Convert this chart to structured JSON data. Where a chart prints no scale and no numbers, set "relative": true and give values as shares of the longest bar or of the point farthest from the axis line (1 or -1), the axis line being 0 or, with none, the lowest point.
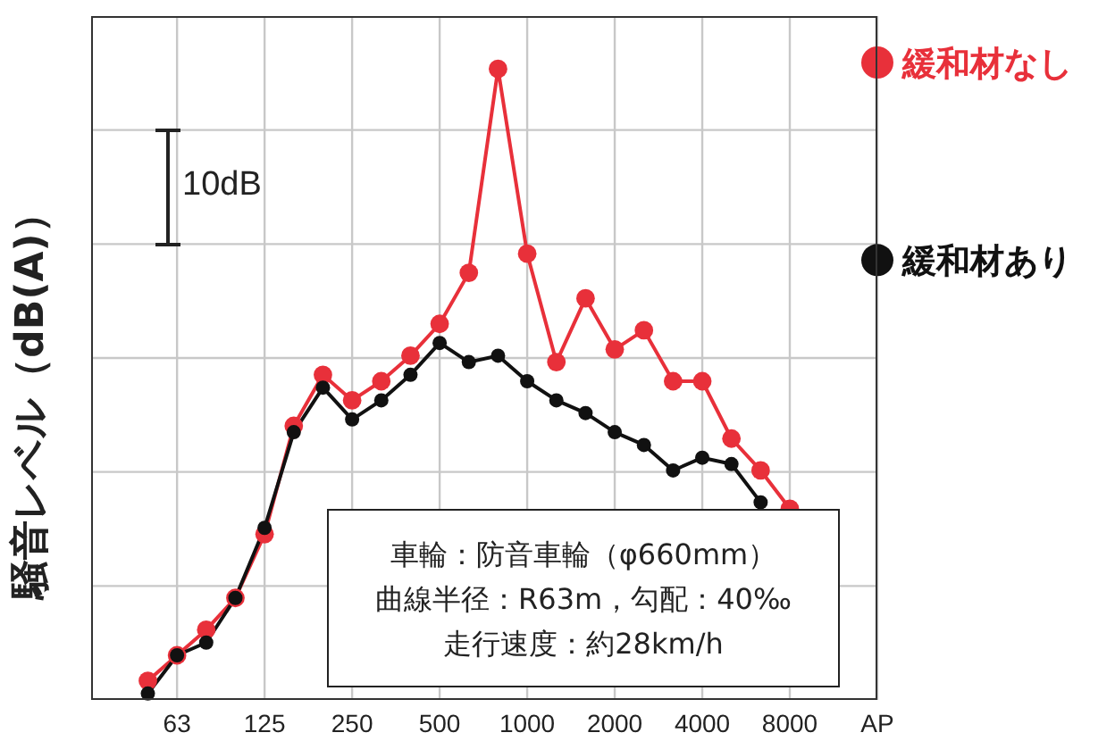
{
  "chart_data": {
    "type": "line",
    "relative": true,
    "ylabel": "騒音レベル（dB(A)）",
    "categories": [
      null,
      "63",
      null,
      null,
      "125",
      null,
      null,
      "250",
      null,
      null,
      "500",
      null,
      null,
      "1000",
      null,
      null,
      "2000",
      null,
      null,
      "4000",
      null,
      null,
      "8000",
      null,
      null,
      "AP"
    ],
    "series": [
      {
        "name": "緩和材なし",
        "color": "#e8303a",
        "values": [
          0.03,
          0.07,
          0.11,
          0.16,
          0.26,
          0.43,
          0.51,
          0.47,
          0.5,
          0.54,
          0.59,
          0.67,
          0.99,
          0.7,
          0.53,
          0.63,
          0.55,
          0.58,
          0.5,
          0.5,
          0.41,
          0.36,
          0.3,
          null,
          null,
          1
        ]
      },
      {
        "name": "緩和材あり",
        "color": "#111111",
        "values": [
          0.01,
          0.07,
          0.09,
          0.16,
          0.27,
          0.42,
          0.49,
          0.44,
          0.47,
          0.51,
          0.56,
          0.53,
          0.54,
          0.5,
          0.47,
          0.45,
          0.42,
          0.4,
          0.36,
          0.38,
          0.37,
          0.31,
          null,
          null,
          null,
          0.69
        ]
      }
    ],
    "annotations": [
      "10dB",
      "車輪：防音車輪（φ660mm）",
      "曲線半径：R63m，勾配：40‰",
      "走行速度：約28km/h"
    ],
    "grid": true,
    "marker": "circle",
    "line_style": "solid"
  }
}
